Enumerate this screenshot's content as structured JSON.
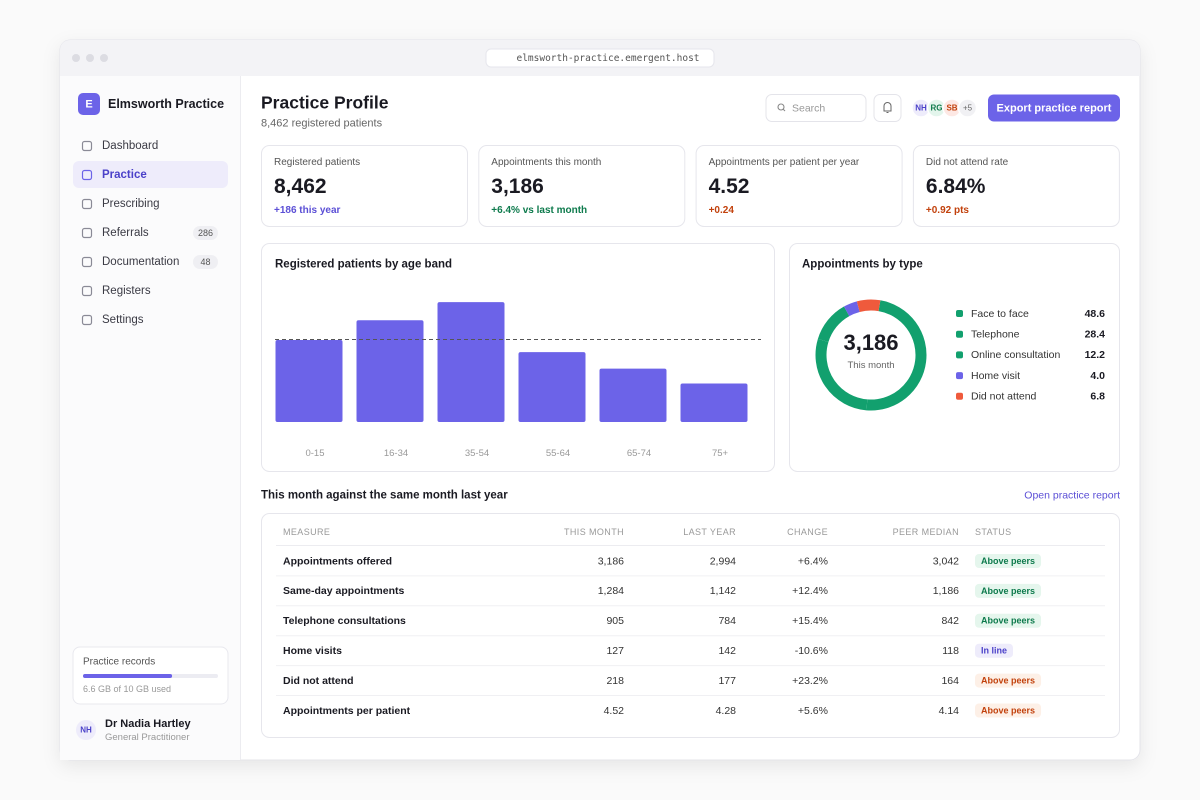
{
  "browser": {
    "url": "elmsworth-practice.emergent.host"
  },
  "sidebar": {
    "logo": "E",
    "practice_name": "Elmsworth Practice",
    "nav": [
      {
        "label": "Dashboard"
      },
      {
        "label": "Practice",
        "active": true
      },
      {
        "label": "Prescribing"
      },
      {
        "label": "Referrals",
        "badge": "286"
      },
      {
        "label": "Documentation",
        "badge": "48"
      },
      {
        "label": "Registers"
      },
      {
        "label": "Settings"
      }
    ],
    "storage": {
      "title": "Practice records",
      "used_gb": 6.6,
      "capacity_gb": 10,
      "label": "6.6 GB of 10 GB used"
    },
    "user": {
      "initials": "NH",
      "name": "Dr Nadia Hartley",
      "role": "General Practitioner"
    }
  },
  "header": {
    "title": "Practice Profile",
    "subtitle": "8,462 registered patients",
    "search_placeholder": "Search",
    "avatars": [
      "NH",
      "RG",
      "SB"
    ],
    "more_avatars": "+5",
    "export_button": "Export practice report"
  },
  "kpis": [
    {
      "label": "Registered patients",
      "value": "8,462",
      "delta": "+186 this year",
      "tone": "accent"
    },
    {
      "label": "Appointments this month",
      "value": "3,186",
      "delta": "+6.4% vs last month",
      "tone": "good"
    },
    {
      "label": "Appointments per patient per year",
      "value": "4.52",
      "delta": "+0.24",
      "tone": "bad"
    },
    {
      "label": "Did not attend rate",
      "value": "6.84%",
      "delta": "+0.92 pts",
      "tone": "bad"
    }
  ],
  "chart_data": [
    {
      "type": "bar",
      "title": "Registered patients by age band",
      "categories": [
        "0-15",
        "16-34",
        "35-54",
        "55-64",
        "65-74",
        "75+"
      ],
      "values": [
        1490,
        1850,
        2180,
        1270,
        970,
        700
      ],
      "color": "#6c63e8",
      "ylim": [
        0,
        2400
      ],
      "reference_line": 1500,
      "grid": false
    },
    {
      "type": "pie",
      "title": "Appointments by type",
      "categories": [
        "Face to face",
        "Telephone",
        "Online consultation",
        "Home visit",
        "Did not attend"
      ],
      "values": [
        48.6,
        28.4,
        12.2,
        4.0,
        6.8
      ],
      "value_labels": [
        "48.6",
        "28.4",
        "12.2",
        "4.0",
        "6.8"
      ],
      "colors": [
        "#12a06e",
        "#12a06e",
        "#12a06e",
        "#6c63e8",
        "#ef5a3c"
      ],
      "center_value": "3,186",
      "center_label": "This month"
    }
  ],
  "comparison": {
    "title": "This month against the same month last year",
    "link": "Open practice report",
    "columns": [
      "MEASURE",
      "THIS MONTH",
      "LAST YEAR",
      "CHANGE",
      "PEER MEDIAN",
      "STATUS"
    ],
    "rows": [
      [
        "Appointments offered",
        "3,186",
        "2,994",
        "+6.4%",
        "3,042",
        "Above peers"
      ],
      [
        "Same-day appointments",
        "1,284",
        "1,142",
        "+12.4%",
        "1,186",
        "Above peers"
      ],
      [
        "Telephone consultations",
        "905",
        "784",
        "+15.4%",
        "842",
        "Above peers"
      ],
      [
        "Home visits",
        "127",
        "142",
        "-10.6%",
        "118",
        "In line"
      ],
      [
        "Did not attend",
        "218",
        "177",
        "+23.2%",
        "164",
        "Above peers"
      ],
      [
        "Appointments per patient",
        "4.52",
        "4.28",
        "+5.6%",
        "4.14",
        "Above peers"
      ]
    ],
    "status_tones": [
      "good",
      "good",
      "good",
      "neutral",
      "warn",
      "warn"
    ]
  }
}
